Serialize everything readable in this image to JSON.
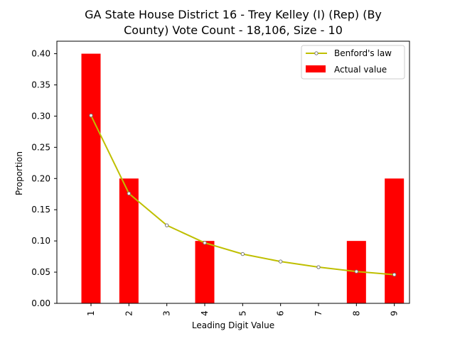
{
  "chart_data": {
    "type": "bar",
    "title_line1": "GA State House District 16 - Trey Kelley (I) (Rep) (By",
    "title_line2": "County) Vote Count - 18,106, Size - 10",
    "xlabel": "Leading Digit Value",
    "ylabel": "Proportion",
    "categories": [
      "1",
      "2",
      "3",
      "4",
      "5",
      "6",
      "7",
      "8",
      "9"
    ],
    "ylim": [
      0,
      0.42
    ],
    "yticks": [
      "0.00",
      "0.05",
      "0.10",
      "0.15",
      "0.20",
      "0.25",
      "0.30",
      "0.35",
      "0.40"
    ],
    "grid": false,
    "legend_position": "top-right",
    "series": [
      {
        "name": "Benford's law",
        "kind": "line",
        "color": "#bfbf00",
        "values": [
          0.301,
          0.176,
          0.125,
          0.097,
          0.079,
          0.067,
          0.058,
          0.051,
          0.046
        ]
      },
      {
        "name": "Actual value",
        "kind": "bar",
        "color": "#ff0000",
        "values": [
          0.4,
          0.2,
          0.0,
          0.1,
          0.0,
          0.0,
          0.0,
          0.1,
          0.2
        ]
      }
    ]
  }
}
